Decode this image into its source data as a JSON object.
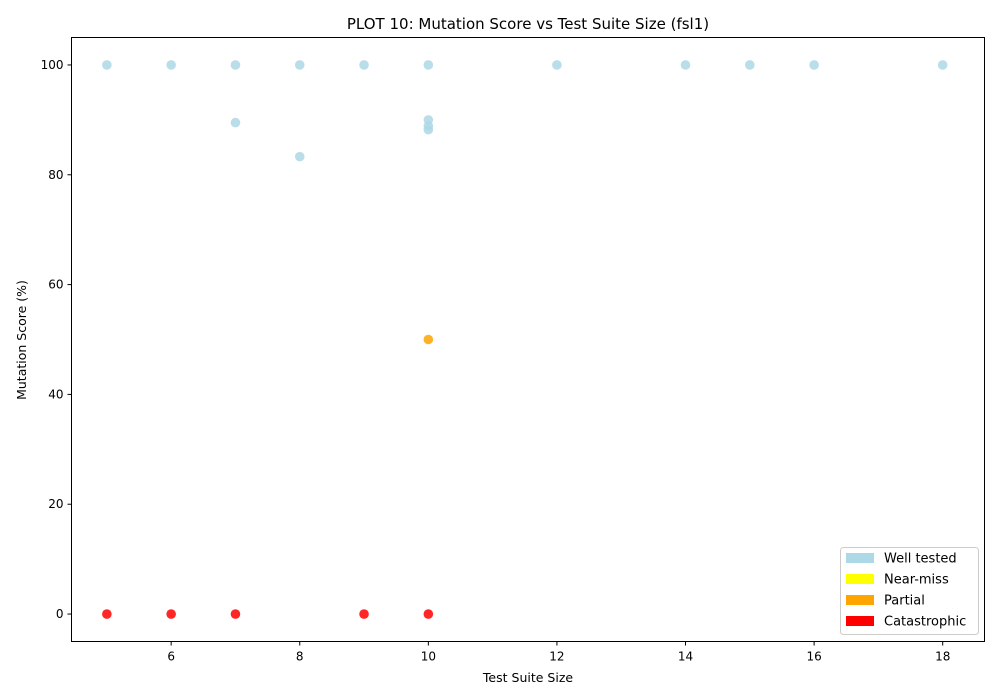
{
  "chart_data": {
    "type": "scatter",
    "title": "PLOT 10: Mutation Score vs Test Suite Size (fsl1)",
    "xlabel": "Test Suite Size",
    "ylabel": "Mutation Score (%)",
    "xlim": [
      4.45,
      18.65
    ],
    "ylim": [
      -5,
      105
    ],
    "xticks": [
      "6",
      "8",
      "10",
      "12",
      "14",
      "16",
      "18"
    ],
    "yticks": [
      "0",
      "20",
      "40",
      "60",
      "80",
      "100"
    ],
    "grid": false,
    "legend_position": "lower-right",
    "legend": [
      {
        "label": "Well tested",
        "color": "#add8e6"
      },
      {
        "label": "Near-miss",
        "color": "#ffff00"
      },
      {
        "label": "Partial",
        "color": "#ffa500"
      },
      {
        "label": "Catastrophic",
        "color": "#ff0000"
      }
    ],
    "series": [
      {
        "name": "Well tested",
        "color": "#add8e6",
        "points": [
          [
            5,
            100
          ],
          [
            6,
            100
          ],
          [
            7,
            100
          ],
          [
            8,
            100
          ],
          [
            9,
            100
          ],
          [
            10,
            100
          ],
          [
            12,
            100
          ],
          [
            14,
            100
          ],
          [
            15,
            100
          ],
          [
            16,
            100
          ],
          [
            18,
            100
          ],
          [
            7,
            89.5
          ],
          [
            8,
            83.3
          ],
          [
            10,
            90
          ],
          [
            10,
            88.9
          ],
          [
            10,
            88.2
          ]
        ]
      },
      {
        "name": "Partial",
        "color": "#ffa500",
        "points": [
          [
            10,
            50
          ]
        ]
      },
      {
        "name": "Catastrophic",
        "color": "#ff0000",
        "points": [
          [
            5,
            0
          ],
          [
            6,
            0
          ],
          [
            7,
            0
          ],
          [
            9,
            0
          ],
          [
            10,
            0
          ]
        ]
      }
    ]
  }
}
